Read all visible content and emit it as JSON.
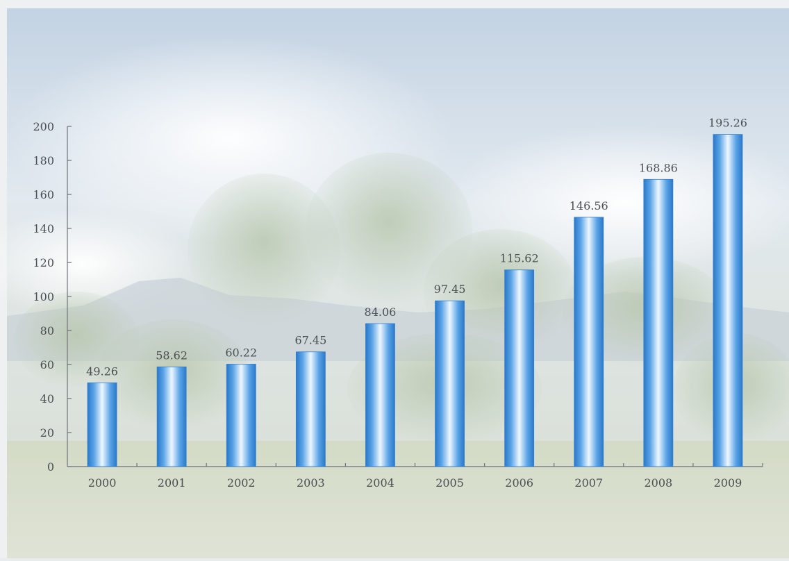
{
  "chart_data": {
    "type": "bar",
    "title": "",
    "xlabel": "",
    "ylabel": "",
    "ylim": [
      0,
      200
    ],
    "yticks": [
      0,
      20,
      40,
      60,
      80,
      100,
      120,
      140,
      160,
      180,
      200
    ],
    "categories": [
      "2000",
      "2001",
      "2002",
      "2003",
      "2004",
      "2005",
      "2006",
      "2007",
      "2008",
      "2009"
    ],
    "values": [
      49.26,
      58.62,
      60.22,
      67.45,
      84.06,
      97.45,
      115.62,
      146.56,
      168.86,
      195.26
    ],
    "value_labels": [
      "49.26",
      "58.62",
      "60.22",
      "67.45",
      "84.06",
      "97.45",
      "115.62",
      "146.56",
      "168.86",
      "195.26"
    ],
    "grid": false,
    "legend": "none",
    "colors": {
      "bar_edge": "#2f7fd0",
      "bar_mid": "#e8f4ff",
      "axis": "#6d7378",
      "text": "#4a4f54"
    }
  }
}
